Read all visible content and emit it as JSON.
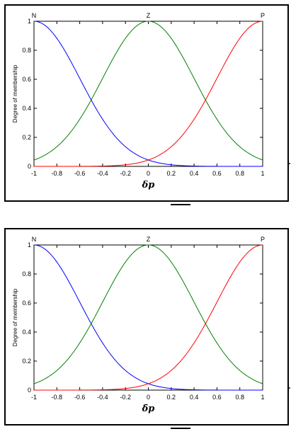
{
  "chart_data": [
    {
      "type": "line",
      "xlabel": "δp",
      "ylabel": "Degree of membership",
      "xlim": [
        -1,
        1
      ],
      "ylim": [
        0,
        1
      ],
      "xticks": [
        "-1",
        "-0.8",
        "-0.6",
        "-0.4",
        "-0.2",
        "0",
        "0.2",
        "0.4",
        "0.6",
        "0.8",
        "1"
      ],
      "yticks": [
        "0",
        "0.2",
        "0.4",
        "0.6",
        "0.8",
        "1"
      ],
      "annotations": [
        "N",
        "Z",
        "P"
      ],
      "series": [
        {
          "color": "#0000ff",
          "membership": "gaussian",
          "center": -1,
          "sigma": 0.4,
          "x": [
            -1,
            -0.8,
            -0.6,
            -0.4,
            -0.2,
            0,
            0.2,
            0.4,
            0.6,
            0.8,
            1
          ],
          "y": [
            1,
            0.88,
            0.61,
            0.32,
            0.14,
            0.04,
            0.01,
            0.0,
            0.0,
            0.0,
            0.0
          ]
        },
        {
          "color": "#008000",
          "membership": "gaussian",
          "center": 0,
          "sigma": 0.4,
          "x": [
            -1,
            -0.8,
            -0.6,
            -0.4,
            -0.2,
            0,
            0.2,
            0.4,
            0.6,
            0.8,
            1
          ],
          "y": [
            0.04,
            0.14,
            0.32,
            0.61,
            0.88,
            1,
            0.88,
            0.61,
            0.32,
            0.14,
            0.04
          ]
        },
        {
          "color": "#ff0000",
          "membership": "gaussian",
          "center": 1,
          "sigma": 0.4,
          "x": [
            -1,
            -0.8,
            -0.6,
            -0.4,
            -0.2,
            0,
            0.2,
            0.4,
            0.6,
            0.8,
            1
          ],
          "y": [
            0.0,
            0.0,
            0.0,
            0.0,
            0.01,
            0.04,
            0.14,
            0.32,
            0.61,
            0.88,
            1
          ]
        }
      ]
    },
    {
      "type": "line",
      "xlabel": "δ̇p",
      "ylabel": "Degree of membership",
      "xlim": [
        -1,
        1
      ],
      "ylim": [
        0,
        1
      ],
      "xticks": [
        "-1",
        "-0.8",
        "-0.6",
        "-0.4",
        "-0.2",
        "0",
        "0.2",
        "0.4",
        "0.6",
        "0.8",
        "1"
      ],
      "yticks": [
        "0",
        "0.2",
        "0.4",
        "0.6",
        "0.8",
        "1"
      ],
      "annotations": [
        "N",
        "Z",
        "P"
      ],
      "series": [
        {
          "color": "#0000ff",
          "membership": "gaussian",
          "center": -1,
          "sigma": 0.4,
          "x": [
            -1,
            -0.8,
            -0.6,
            -0.4,
            -0.2,
            0,
            0.2,
            0.4,
            0.6,
            0.8,
            1
          ],
          "y": [
            1,
            0.88,
            0.61,
            0.32,
            0.14,
            0.04,
            0.01,
            0.0,
            0.0,
            0.0,
            0.0
          ]
        },
        {
          "color": "#008000",
          "membership": "gaussian",
          "center": 0,
          "sigma": 0.4,
          "x": [
            -1,
            -0.8,
            -0.6,
            -0.4,
            -0.2,
            0,
            0.2,
            0.4,
            0.6,
            0.8,
            1
          ],
          "y": [
            0.04,
            0.14,
            0.32,
            0.61,
            0.88,
            1,
            0.88,
            0.61,
            0.32,
            0.14,
            0.04
          ]
        },
        {
          "color": "#ff0000",
          "membership": "gaussian",
          "center": 1,
          "sigma": 0.4,
          "x": [
            -1,
            -0.8,
            -0.6,
            -0.4,
            -0.2,
            0,
            0.2,
            0.4,
            0.6,
            0.8,
            1
          ],
          "y": [
            0.0,
            0.0,
            0.0,
            0.0,
            0.01,
            0.04,
            0.14,
            0.32,
            0.61,
            0.88,
            1
          ]
        }
      ]
    }
  ]
}
